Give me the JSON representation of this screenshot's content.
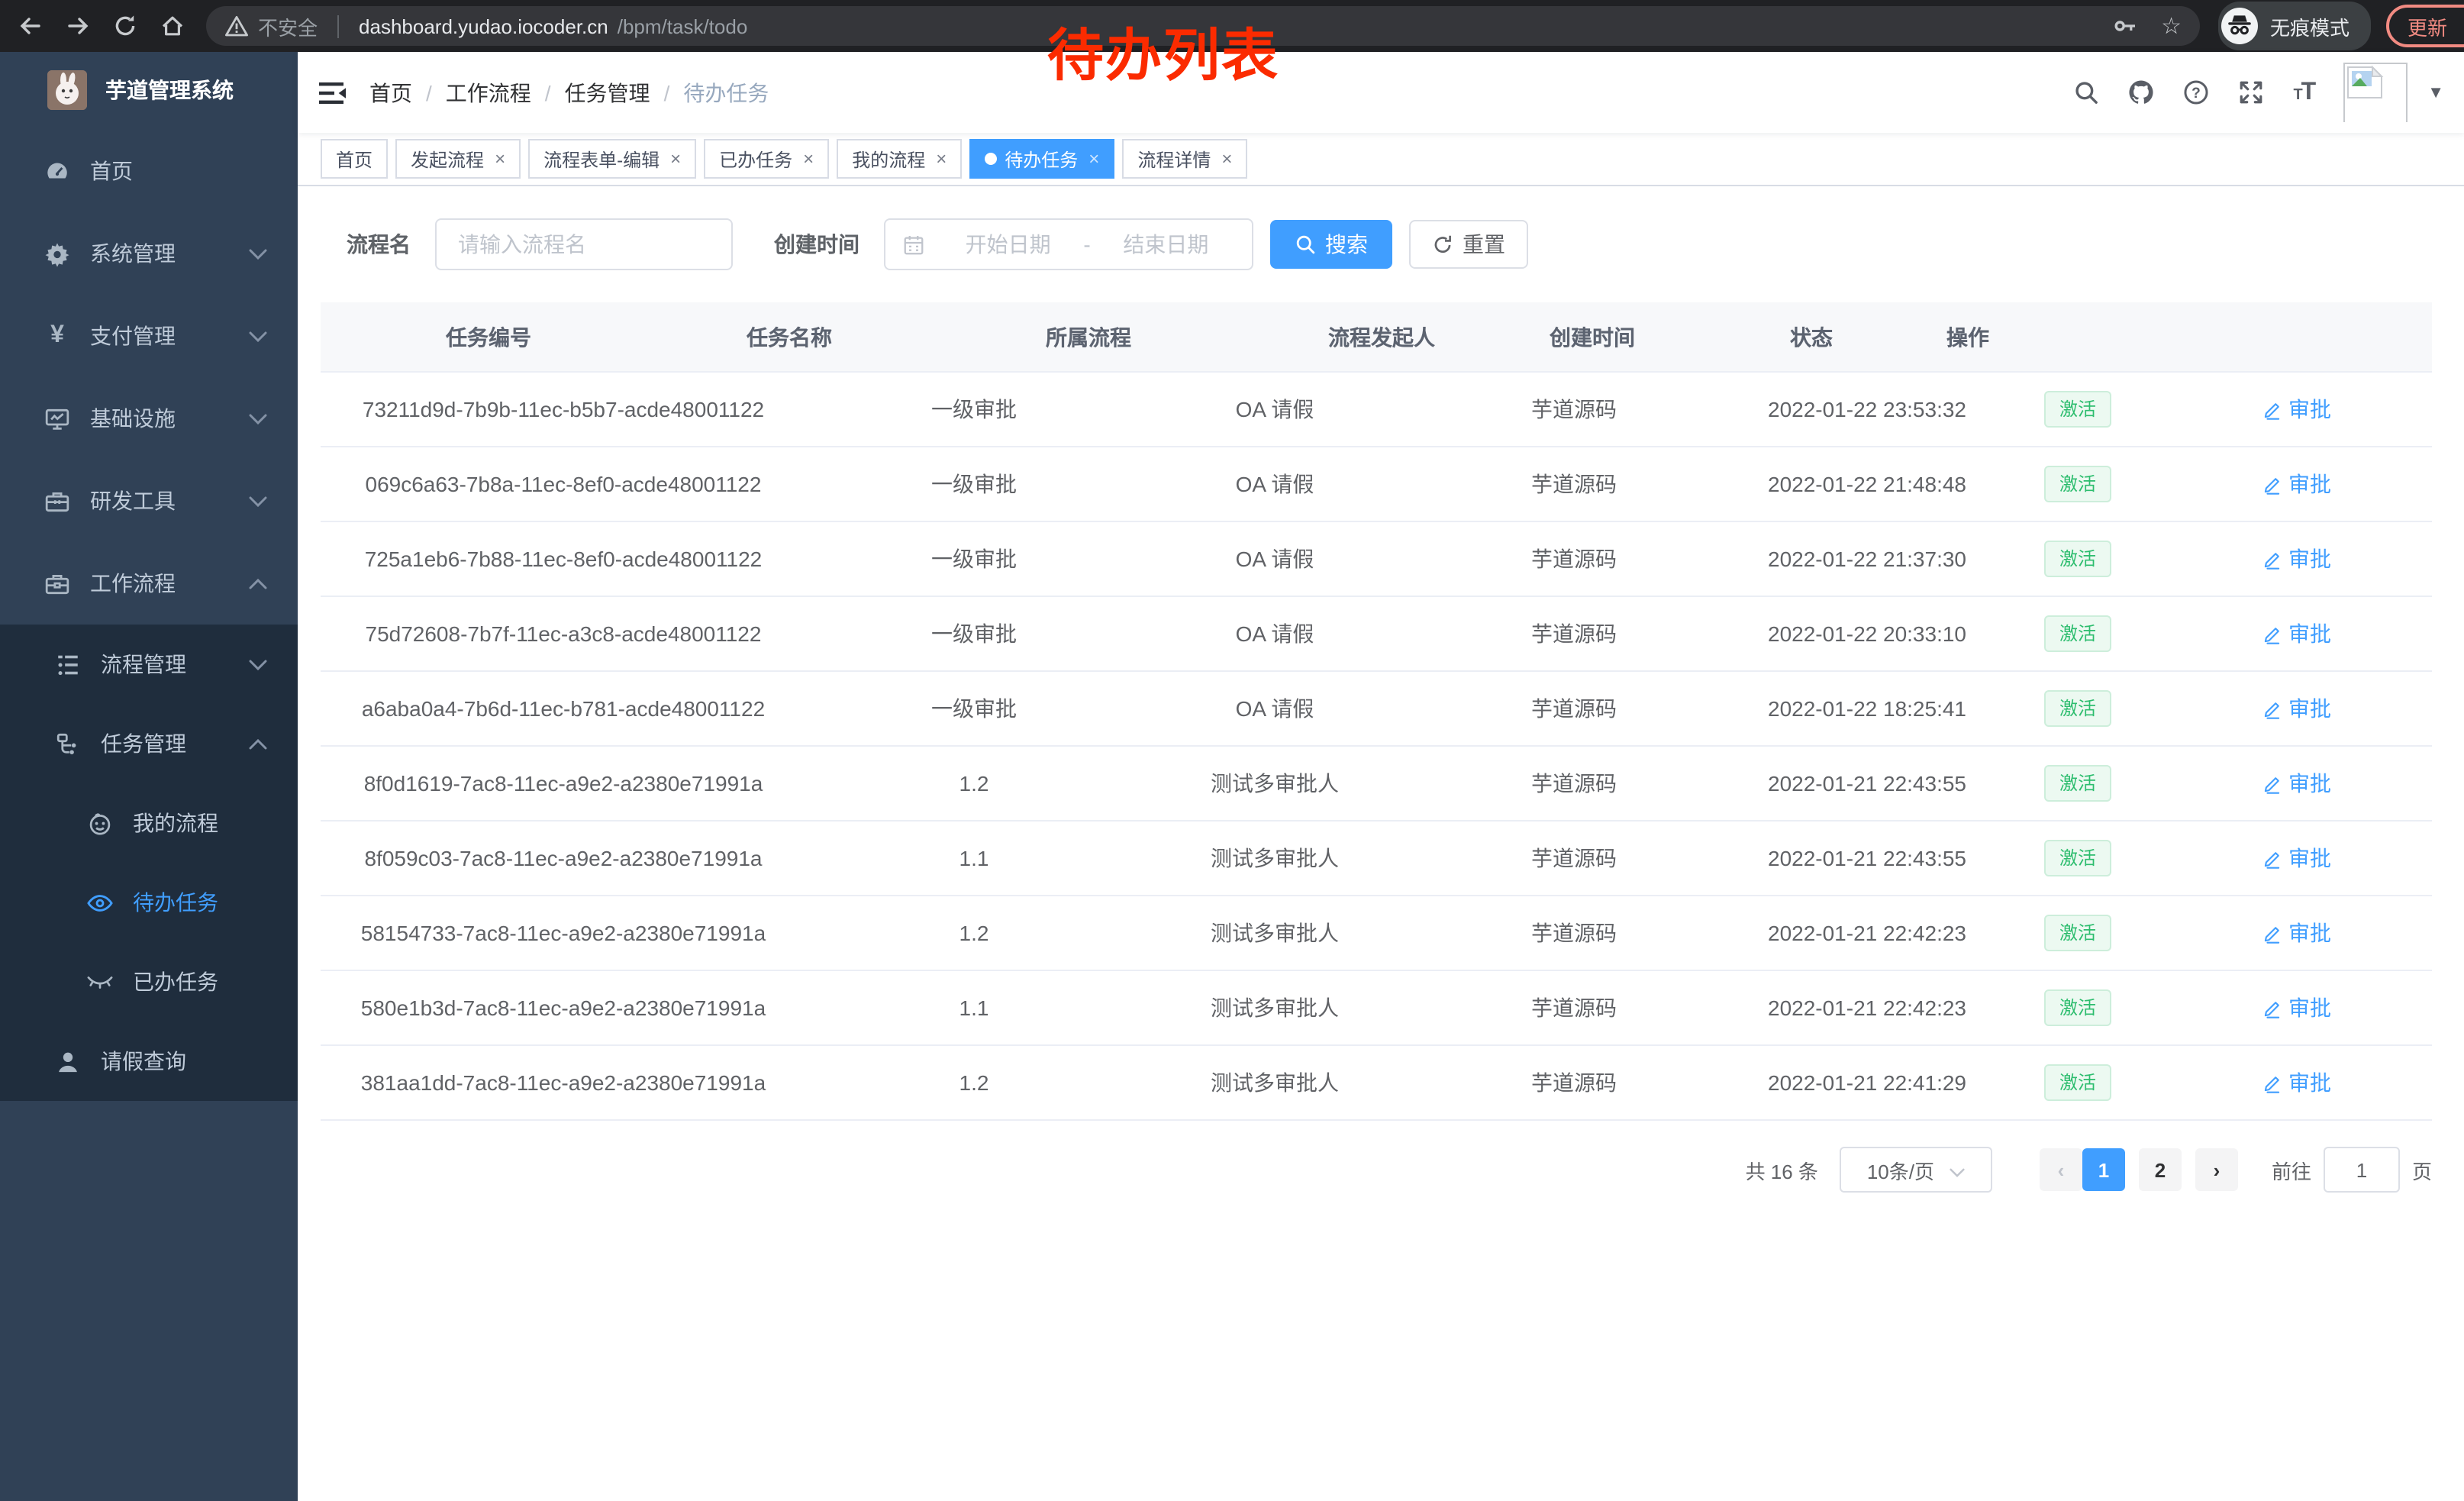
{
  "annotation": {
    "text": "待办列表"
  },
  "browser": {
    "security": "不安全",
    "url_host": "dashboard.yudao.iocoder.cn",
    "url_path": "/bpm/task/todo",
    "incognito": "无痕模式",
    "update": "更新",
    "menu_dots": "⋮",
    "star": "☆"
  },
  "sidebar": {
    "title": "芋道管理系统",
    "items": [
      {
        "label": "首页",
        "icon": "dashboard",
        "variant": "lvl0"
      },
      {
        "label": "系统管理",
        "icon": "gear",
        "variant": "lvl0",
        "chevron": "down"
      },
      {
        "label": "支付管理",
        "icon": "yen",
        "variant": "lvl0",
        "chevron": "down"
      },
      {
        "label": "基础设施",
        "icon": "monitor",
        "variant": "lvl0",
        "chevron": "down"
      },
      {
        "label": "研发工具",
        "icon": "toolbox",
        "variant": "lvl0",
        "chevron": "down"
      },
      {
        "label": "工作流程",
        "icon": "briefcase",
        "variant": "lvl0",
        "chevron": "up"
      },
      {
        "label": "流程管理",
        "icon": "tree",
        "variant": "lvl1 dark",
        "chevron": "down"
      },
      {
        "label": "任务管理",
        "icon": "flow",
        "variant": "lvl1 dark",
        "chevron": "up"
      },
      {
        "label": "我的流程",
        "icon": "face",
        "variant": "lvl2 dark"
      },
      {
        "label": "待办任务",
        "icon": "eye",
        "variant": "lvl2 dark active"
      },
      {
        "label": "已办任务",
        "icon": "eye-closed",
        "variant": "lvl2 dark"
      },
      {
        "label": "请假查询",
        "icon": "user",
        "variant": "lvl1 dark"
      }
    ]
  },
  "breadcrumb": [
    {
      "label": "首页",
      "sep": "/",
      "variant": ""
    },
    {
      "label": "工作流程",
      "sep": "/",
      "variant": ""
    },
    {
      "label": "任务管理",
      "sep": "/",
      "variant": ""
    },
    {
      "label": "待办任务",
      "sep": "",
      "variant": "current"
    }
  ],
  "tabs": [
    {
      "label": "首页",
      "closable": false,
      "variant": ""
    },
    {
      "label": "发起流程",
      "closable": true,
      "variant": ""
    },
    {
      "label": "流程表单-编辑",
      "closable": true,
      "variant": ""
    },
    {
      "label": "已办任务",
      "closable": true,
      "variant": ""
    },
    {
      "label": "我的流程",
      "closable": true,
      "variant": ""
    },
    {
      "label": "待办任务",
      "closable": true,
      "variant": "active"
    },
    {
      "label": "流程详情",
      "closable": true,
      "variant": ""
    }
  ],
  "filters": {
    "name_label": "流程名",
    "name_placeholder": "请输入流程名",
    "time_label": "创建时间",
    "start_placeholder": "开始日期",
    "range_sep": "-",
    "end_placeholder": "结束日期",
    "search": "搜索",
    "reset": "重置"
  },
  "table": {
    "columns": [
      "任务编号",
      "任务名称",
      "所属流程",
      "流程发起人",
      "创建时间",
      "状态",
      "操作"
    ],
    "rows": [
      {
        "id": "73211d9d-7b9b-11ec-b5b7-acde48001122",
        "name": "一级审批",
        "process": "OA 请假",
        "starter": "芋道源码",
        "created": "2022-01-22 23:53:32",
        "status": "激活",
        "action": "审批"
      },
      {
        "id": "069c6a63-7b8a-11ec-8ef0-acde48001122",
        "name": "一级审批",
        "process": "OA 请假",
        "starter": "芋道源码",
        "created": "2022-01-22 21:48:48",
        "status": "激活",
        "action": "审批"
      },
      {
        "id": "725a1eb6-7b88-11ec-8ef0-acde48001122",
        "name": "一级审批",
        "process": "OA 请假",
        "starter": "芋道源码",
        "created": "2022-01-22 21:37:30",
        "status": "激活",
        "action": "审批"
      },
      {
        "id": "75d72608-7b7f-11ec-a3c8-acde48001122",
        "name": "一级审批",
        "process": "OA 请假",
        "starter": "芋道源码",
        "created": "2022-01-22 20:33:10",
        "status": "激活",
        "action": "审批"
      },
      {
        "id": "a6aba0a4-7b6d-11ec-b781-acde48001122",
        "name": "一级审批",
        "process": "OA 请假",
        "starter": "芋道源码",
        "created": "2022-01-22 18:25:41",
        "status": "激活",
        "action": "审批"
      },
      {
        "id": "8f0d1619-7ac8-11ec-a9e2-a2380e71991a",
        "name": "1.2",
        "process": "测试多审批人",
        "starter": "芋道源码",
        "created": "2022-01-21 22:43:55",
        "status": "激活",
        "action": "审批"
      },
      {
        "id": "8f059c03-7ac8-11ec-a9e2-a2380e71991a",
        "name": "1.1",
        "process": "测试多审批人",
        "starter": "芋道源码",
        "created": "2022-01-21 22:43:55",
        "status": "激活",
        "action": "审批"
      },
      {
        "id": "58154733-7ac8-11ec-a9e2-a2380e71991a",
        "name": "1.2",
        "process": "测试多审批人",
        "starter": "芋道源码",
        "created": "2022-01-21 22:42:23",
        "status": "激活",
        "action": "审批"
      },
      {
        "id": "580e1b3d-7ac8-11ec-a9e2-a2380e71991a",
        "name": "1.1",
        "process": "测试多审批人",
        "starter": "芋道源码",
        "created": "2022-01-21 22:42:23",
        "status": "激活",
        "action": "审批"
      },
      {
        "id": "381aa1dd-7ac8-11ec-a9e2-a2380e71991a",
        "name": "1.2",
        "process": "测试多审批人",
        "starter": "芋道源码",
        "created": "2022-01-21 22:41:29",
        "status": "激活",
        "action": "审批"
      }
    ]
  },
  "pagination": {
    "total": "共 16 条",
    "page_size": "10条/页",
    "prev": "‹",
    "next": "›",
    "pages": [
      {
        "label": "1",
        "variant": "active"
      },
      {
        "label": "2",
        "variant": ""
      }
    ],
    "goto_label": "前往",
    "goto_value": "1",
    "page_unit": "页"
  },
  "colors": {
    "accent": "#409eff",
    "success_text": "#2dbd6e",
    "annotation_red": "#fb2b00",
    "update_salmon": "#f28b82",
    "sidebar_bg": "#304156",
    "submenu_bg": "#1f2d3d"
  }
}
